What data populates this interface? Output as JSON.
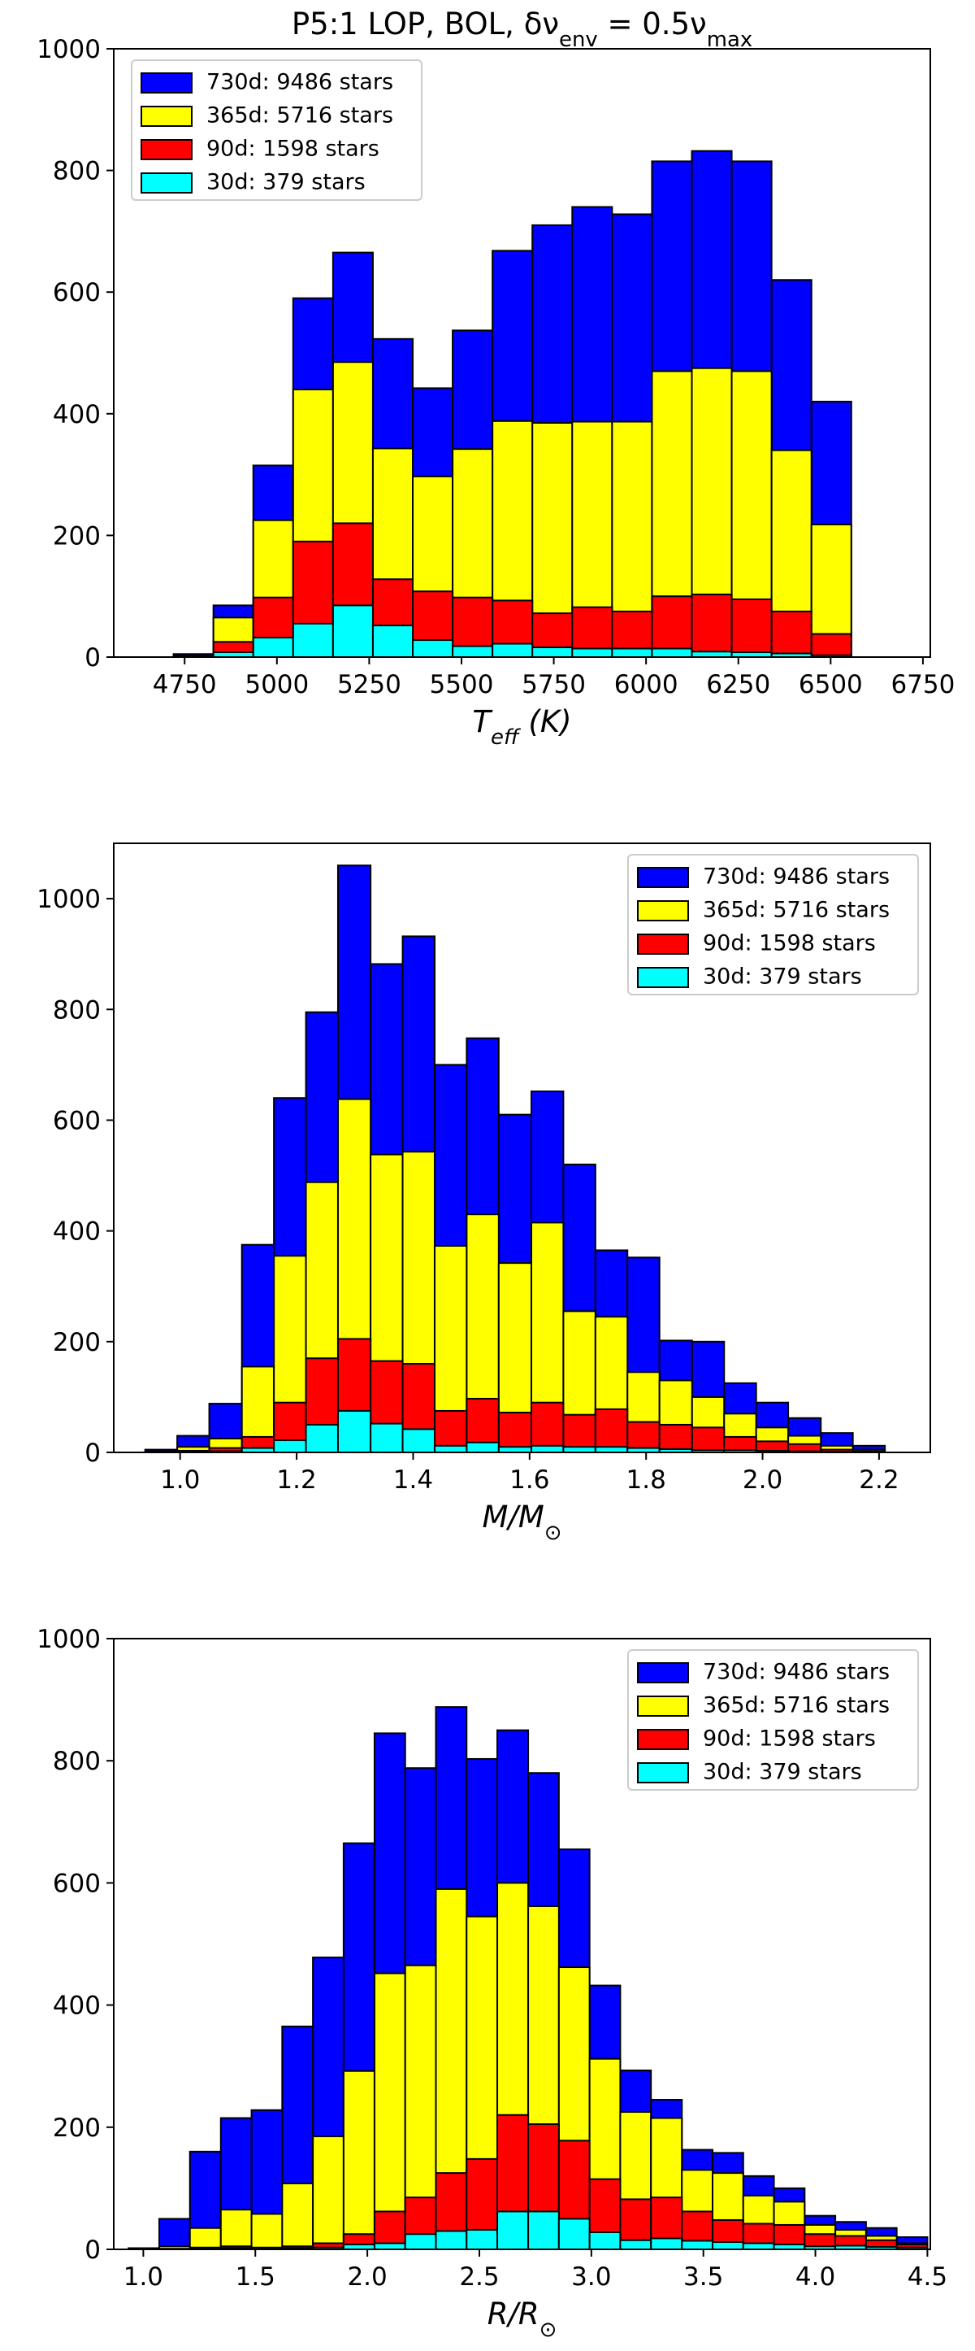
{
  "chart_data": [
    {
      "type": "histogram",
      "title": [
        "P5:1 LOP, BOL, δν",
        "env",
        " = 0.5ν",
        "max"
      ],
      "xlabel": [
        "T",
        "eff",
        " (K)"
      ],
      "bins": [
        4720,
        4828,
        4936,
        5044,
        5152,
        5260,
        5368,
        5476,
        5584,
        5692,
        5800,
        5908,
        6016,
        6124,
        6232,
        6340,
        6448,
        6556
      ],
      "series": [
        {
          "name": "730d: 9486 stars",
          "color": "#0000ff",
          "values": [
            5,
            85,
            315,
            590,
            665,
            523,
            442,
            537,
            668,
            710,
            740,
            728,
            815,
            832,
            815,
            620,
            420
          ]
        },
        {
          "name": "365d: 5716 stars",
          "color": "#ffff00",
          "values": [
            2,
            65,
            225,
            440,
            485,
            343,
            297,
            342,
            388,
            385,
            387,
            387,
            470,
            475,
            470,
            340,
            218
          ]
        },
        {
          "name": "90d: 1598 stars",
          "color": "#ff0000",
          "values": [
            1,
            25,
            98,
            190,
            220,
            128,
            108,
            98,
            93,
            72,
            82,
            75,
            100,
            103,
            95,
            75,
            38
          ]
        },
        {
          "name": "30d: 379 stars",
          "color": "#00ffff",
          "values": [
            0,
            8,
            32,
            55,
            85,
            52,
            28,
            18,
            22,
            16,
            14,
            14,
            14,
            9,
            8,
            6,
            3
          ]
        }
      ],
      "xlim": [
        4558,
        6770
      ],
      "ylim": [
        0,
        1000
      ],
      "xticks": [
        4750,
        5000,
        5250,
        5500,
        5750,
        6000,
        6250,
        6500,
        6750
      ],
      "yticks": [
        0,
        200,
        400,
        600,
        800,
        1000
      ],
      "legend": "upper left"
    },
    {
      "type": "histogram",
      "xlabel": [
        "M/M",
        "⊙"
      ],
      "bins": [
        0.94,
        0.995,
        1.05,
        1.106,
        1.161,
        1.216,
        1.271,
        1.327,
        1.382,
        1.437,
        1.492,
        1.547,
        1.603,
        1.658,
        1.713,
        1.768,
        1.823,
        1.879,
        1.934,
        1.989,
        2.044,
        2.1,
        2.155,
        2.21
      ],
      "series": [
        {
          "name": "730d: 9486 stars",
          "color": "#0000ff",
          "values": [
            5,
            30,
            88,
            375,
            640,
            795,
            1060,
            882,
            932,
            700,
            748,
            610,
            652,
            520,
            365,
            352,
            202,
            200,
            125,
            90,
            62,
            35,
            12
          ]
        },
        {
          "name": "365d: 5716 stars",
          "color": "#ffff00",
          "values": [
            2,
            10,
            25,
            155,
            355,
            488,
            638,
            538,
            543,
            373,
            430,
            342,
            415,
            255,
            245,
            145,
            130,
            100,
            70,
            45,
            30,
            12,
            5
          ]
        },
        {
          "name": "90d: 1598 stars",
          "color": "#ff0000",
          "values": [
            0,
            3,
            8,
            28,
            90,
            170,
            205,
            165,
            160,
            75,
            97,
            72,
            90,
            68,
            78,
            55,
            50,
            45,
            28,
            20,
            15,
            5,
            2
          ]
        },
        {
          "name": "30d: 379 stars",
          "color": "#00ffff",
          "values": [
            0,
            1,
            2,
            8,
            22,
            50,
            75,
            52,
            42,
            12,
            18,
            10,
            12,
            10,
            10,
            8,
            6,
            4,
            4,
            3,
            2,
            1,
            0
          ]
        }
      ],
      "xlim": [
        0.886,
        2.288
      ],
      "ylim": [
        0,
        1100
      ],
      "xticks": [
        {
          "value": 1,
          "label": "1.0"
        },
        1.2,
        1.4,
        1.6,
        1.8,
        {
          "value": 2,
          "label": "2.0"
        },
        2.2
      ],
      "yticks": [
        0,
        200,
        400,
        600,
        800,
        1000
      ],
      "legend": "upper right"
    },
    {
      "type": "histogram",
      "xlabel": [
        "R/R",
        "⊙"
      ],
      "bins": [
        0.934,
        1.071,
        1.208,
        1.346,
        1.483,
        1.62,
        1.757,
        1.894,
        2.032,
        2.169,
        2.306,
        2.443,
        2.58,
        2.718,
        2.855,
        2.992,
        3.129,
        3.266,
        3.404,
        3.541,
        3.678,
        3.815,
        3.952,
        4.089,
        4.226,
        4.363,
        4.5
      ],
      "series": [
        {
          "name": "730d: 9486 stars",
          "color": "#0000ff",
          "values": [
            2,
            50,
            160,
            215,
            228,
            365,
            478,
            665,
            845,
            788,
            888,
            803,
            850,
            780,
            655,
            432,
            293,
            245,
            163,
            158,
            120,
            100,
            55,
            45,
            35,
            20
          ]
        },
        {
          "name": "365d: 5716 stars",
          "color": "#ffff00",
          "values": [
            0,
            5,
            35,
            65,
            58,
            108,
            185,
            292,
            452,
            465,
            590,
            545,
            600,
            562,
            462,
            312,
            225,
            215,
            130,
            125,
            88,
            78,
            40,
            32,
            22,
            10
          ]
        },
        {
          "name": "90d: 1598 stars",
          "color": "#ff0000",
          "values": [
            0,
            1,
            3,
            5,
            3,
            5,
            10,
            25,
            62,
            85,
            125,
            148,
            220,
            205,
            178,
            115,
            82,
            85,
            62,
            48,
            42,
            40,
            25,
            22,
            15,
            8
          ]
        },
        {
          "name": "30d: 379 stars",
          "color": "#00ffff",
          "values": [
            0,
            0,
            1,
            2,
            1,
            2,
            3,
            8,
            10,
            25,
            30,
            32,
            62,
            62,
            50,
            28,
            15,
            18,
            14,
            12,
            10,
            8,
            5,
            6,
            4,
            3
          ]
        }
      ],
      "xlim": [
        0.868,
        4.513
      ],
      "ylim": [
        0,
        1000
      ],
      "xticks": [
        {
          "value": 1,
          "label": "1.0"
        },
        1.5,
        {
          "value": 2,
          "label": "2.0"
        },
        2.5,
        {
          "value": 3,
          "label": "3.0"
        },
        3.5,
        {
          "value": 4,
          "label": "4.0"
        },
        4.5
      ],
      "yticks": [
        0,
        200,
        400,
        600,
        800,
        1000
      ],
      "legend": "upper right"
    }
  ]
}
